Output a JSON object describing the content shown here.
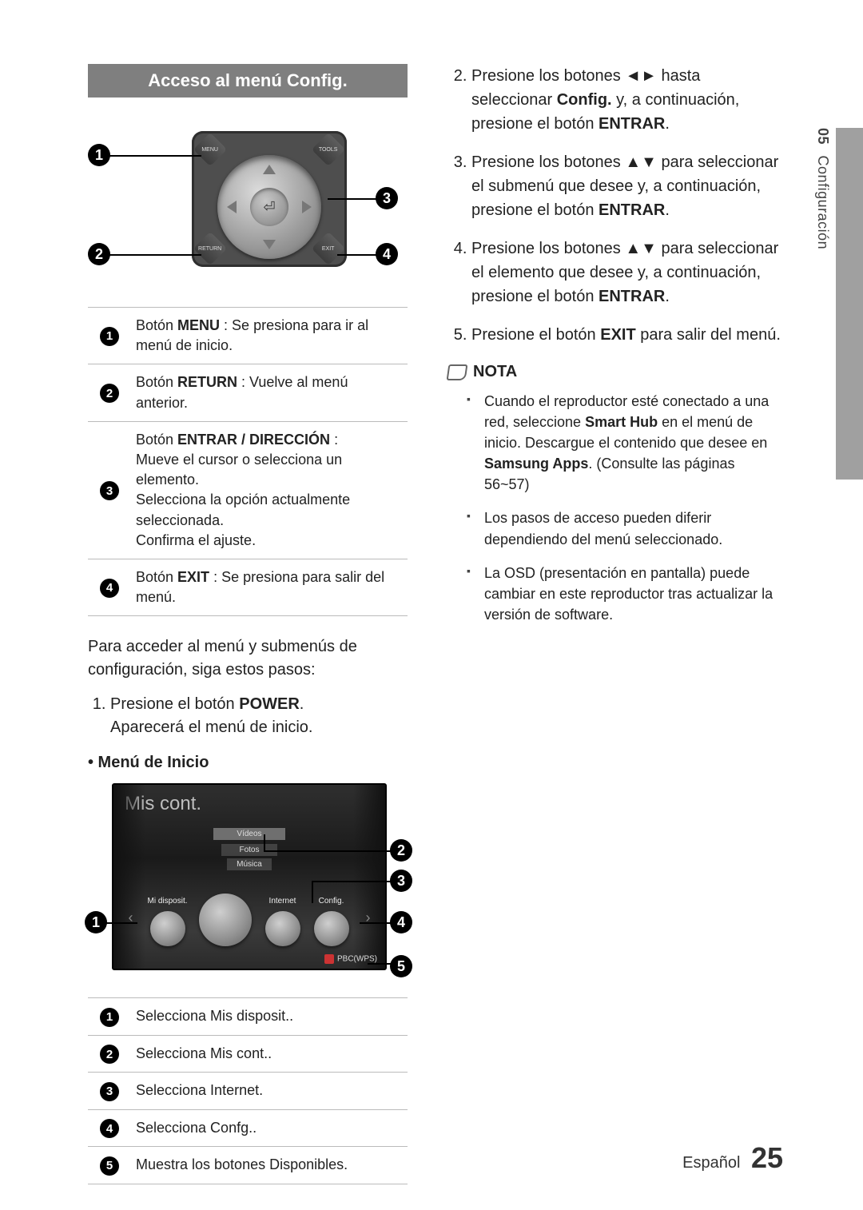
{
  "sideLabel": {
    "num": "05",
    "text": "Configuración"
  },
  "barTitle": "Acceso al menú Config.",
  "remote": {
    "corners": {
      "tl": "MENU",
      "tr": "TOOLS",
      "bl": "RETURN",
      "br": "EXIT"
    },
    "enterGlyph": "⏎",
    "callouts": {
      "n1": "1",
      "n2": "2",
      "n3": "3",
      "n4": "4"
    }
  },
  "descRows": [
    {
      "n": "1",
      "html": "Botón <b>MENU</b> : Se presiona para ir al menú de inicio."
    },
    {
      "n": "2",
      "html": "Botón <b>RETURN</b> : Vuelve al menú anterior."
    },
    {
      "n": "3",
      "html": "Botón <b>ENTRAR / DIRECCIÓN</b> :<br>Mueve el cursor o selecciona un elemento.<br>Selecciona la opción actualmente seleccionada.<br>Confirma el ajuste."
    },
    {
      "n": "4",
      "html": "Botón <b>EXIT</b> : Se presiona para salir del menú."
    }
  ],
  "introPara": "Para acceder al menú y submenús de configuración, siga estos pasos:",
  "leftSteps": [
    "Presione el botón <b>POWER</b>.<br>Aparecerá el menú de inicio."
  ],
  "menuInicioLabel": "• Menú de Inicio",
  "homeMenu": {
    "title": "Mis cont.",
    "bands": [
      "Vídeos",
      "Fotos",
      "Música"
    ],
    "icons": [
      {
        "label": "Mi disposit."
      },
      {
        "label": ""
      },
      {
        "label": "Internet"
      },
      {
        "label": "Config."
      }
    ],
    "footerBtn": "d",
    "footerText": "PBC(WPS)",
    "callouts": {
      "n1": "1",
      "n2": "2",
      "n3": "3",
      "n4": "4",
      "n5": "5"
    }
  },
  "hmDesc": [
    {
      "n": "1",
      "text": "Selecciona Mis disposit.."
    },
    {
      "n": "2",
      "text": "Selecciona Mis cont.."
    },
    {
      "n": "3",
      "text": "Selecciona Internet."
    },
    {
      "n": "4",
      "text": "Selecciona Confg.."
    },
    {
      "n": "5",
      "text": "Muestra los botones Disponibles."
    }
  ],
  "rightSteps": [
    "Presione los botones <span class='arrowglyph'>◄►</span> hasta seleccionar <b>Config.</b> y, a continuación, presione el botón <b>ENTRAR</b>.",
    "Presione los botones <span class='arrowglyph'>▲▼</span> para seleccionar el submenú que desee  y, a continuación, presione el botón <b>ENTRAR</b>.",
    "Presione los botones <span class='arrowglyph'>▲▼</span> para seleccionar el elemento que desee y, a continuación, presione el botón <b>ENTRAR</b>.",
    "Presione el botón <b>EXIT</b> para salir del menú."
  ],
  "rightStart": 2,
  "notaLabel": "NOTA",
  "notes": [
    "Cuando el reproductor esté conectado a una red, seleccione <b>Smart Hub</b> en el menú de inicio. Descargue el contenido que desee en <b>Samsung Apps</b>. (Consulte las páginas 56~57)",
    "Los pasos de acceso pueden diferir dependiendo del menú seleccionado.",
    "La OSD (presentación en pantalla) puede cambiar en este reproductor tras actualizar la versión de software."
  ],
  "footer": {
    "lang": "Español",
    "page": "25"
  }
}
